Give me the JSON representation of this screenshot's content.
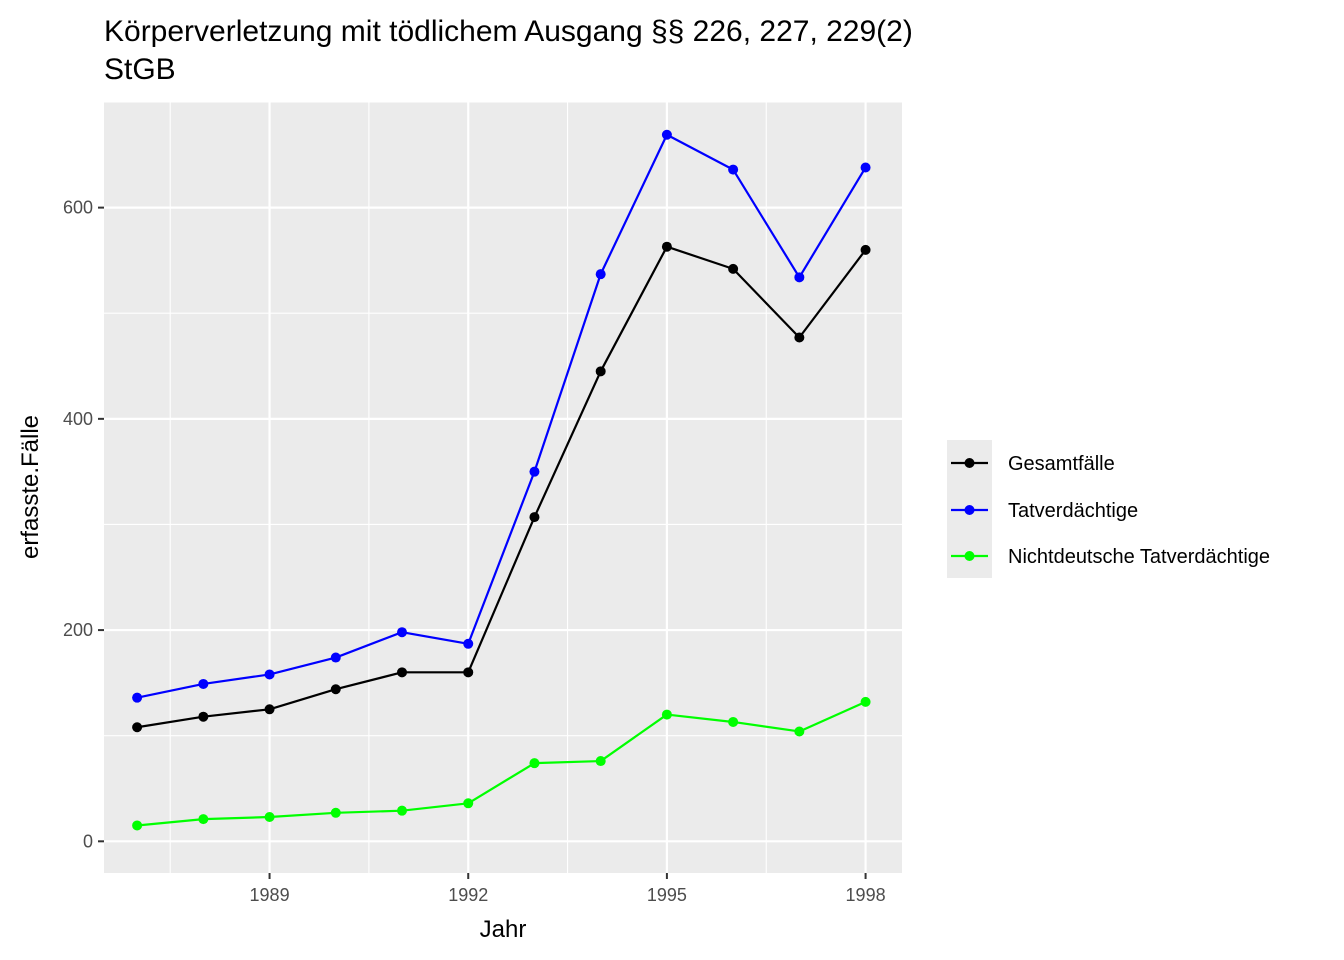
{
  "chart_data": {
    "type": "line",
    "title": "Körperverletzung mit tödlichem Ausgang §§ 226, 227, 229(2) StGB",
    "title_lines": [
      "Körperverletzung mit tödlichem Ausgang §§ 226, 227, 229(2)",
      "StGB"
    ],
    "xlabel": "Jahr",
    "ylabel": "erfasste.Fälle",
    "x": [
      1987,
      1988,
      1989,
      1990,
      1991,
      1992,
      1993,
      1994,
      1995,
      1996,
      1997,
      1998
    ],
    "xlim": [
      1986.5,
      1998.55
    ],
    "ylim": [
      -30,
      700
    ],
    "x_ticks": [
      1989,
      1992,
      1995,
      1998
    ],
    "x_tick_labels": [
      "1989",
      "1992",
      "1995",
      "1998"
    ],
    "y_ticks": [
      0,
      200,
      400,
      600
    ],
    "y_tick_labels": [
      "0",
      "200",
      "400",
      "600"
    ],
    "grid": true,
    "legend_position": "right",
    "series": [
      {
        "name": "Gesamtfälle",
        "color": "#000000",
        "values": [
          108,
          118,
          125,
          144,
          160,
          160,
          307,
          445,
          563,
          542,
          477,
          560
        ]
      },
      {
        "name": "Tatverdächtige",
        "color": "#0000ff",
        "values": [
          136,
          149,
          158,
          174,
          198,
          187,
          350,
          537,
          669,
          636,
          534,
          638
        ]
      },
      {
        "name": "Nichtdeutsche Tatverdächtige",
        "color": "#00ff00",
        "values": [
          15,
          21,
          23,
          27,
          29,
          36,
          74,
          76,
          120,
          113,
          104,
          132
        ]
      }
    ]
  }
}
